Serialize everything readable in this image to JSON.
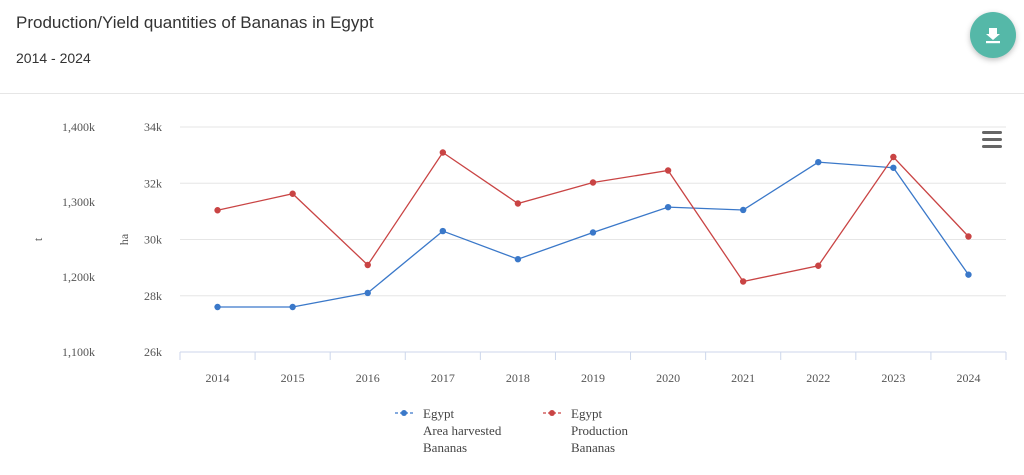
{
  "header": {
    "title": "Production/Yield quantities of Bananas in Egypt",
    "subtitle": "2014 - 2024",
    "download_icon": "download-icon"
  },
  "menu_icon": "hamburger-menu-icon",
  "chart_data": {
    "type": "line",
    "x": [
      "2014",
      "2015",
      "2016",
      "2017",
      "2018",
      "2019",
      "2020",
      "2021",
      "2022",
      "2023",
      "2024"
    ],
    "left_axis": {
      "title": "t",
      "ticks": [
        "1,100k",
        "1,200k",
        "1,300k",
        "1,400k"
      ],
      "range": [
        1100000,
        1400000
      ]
    },
    "right_axis": {
      "title": "ha",
      "ticks": [
        "26k",
        "28k",
        "30k",
        "32k",
        "34k"
      ],
      "range": [
        26000,
        34000
      ]
    },
    "series": [
      {
        "name_lines": [
          "Egypt",
          "Area harvested",
          "Bananas"
        ],
        "axis": "ha",
        "color": "#3a78c9",
        "values": [
          27600,
          27600,
          28100,
          30300,
          29300,
          30250,
          31150,
          31050,
          32750,
          32550,
          28750
        ]
      },
      {
        "name_lines": [
          "Egypt",
          "Production",
          "Bananas"
        ],
        "axis": "t",
        "color": "#c94444",
        "values": [
          1289000,
          1311000,
          1216000,
          1366000,
          1298000,
          1326000,
          1342000,
          1194000,
          1215000,
          1360000,
          1254000
        ]
      }
    ],
    "grid": true,
    "legend_position": "bottom-center"
  }
}
